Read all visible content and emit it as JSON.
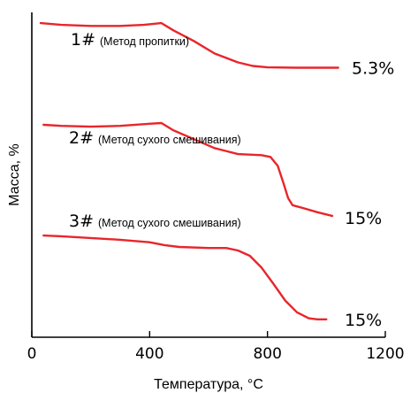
{
  "chart_data": {
    "type": "line",
    "xlabel": "Температура, °C",
    "ylabel": "Масса, %",
    "xlim": [
      0,
      1200
    ],
    "xticks": [
      "0",
      "400",
      "800",
      "1200"
    ],
    "xtick_values": [
      0,
      400,
      800,
      1200
    ],
    "series": [
      {
        "name": "1# (Метод пропитки)",
        "id": "1#",
        "method": "(Метод пропитки)",
        "end_label": "5.3%",
        "color": "#e8262b",
        "x": [
          30,
          100,
          200,
          300,
          380,
          440,
          480,
          550,
          620,
          700,
          750,
          800,
          900,
          1000,
          1040
        ],
        "y": [
          98.0,
          97.5,
          97.2,
          97.2,
          97.5,
          98.0,
          96.0,
          93.0,
          89.5,
          87.0,
          86.0,
          85.6,
          85.5,
          85.5,
          85.5
        ]
      },
      {
        "name": "2# (Метод сухого смешивания)",
        "id": "2#",
        "method": "(Метод сухого смешивания)",
        "end_label": "15%",
        "color": "#e8262b",
        "x": [
          40,
          100,
          200,
          300,
          400,
          440,
          480,
          550,
          620,
          700,
          780,
          810,
          835,
          855,
          870,
          885,
          920,
          970,
          1020
        ],
        "y": [
          69.5,
          69.2,
          69.0,
          69.2,
          69.8,
          70.0,
          68.0,
          65.5,
          63.0,
          61.3,
          61.0,
          60.5,
          58.0,
          53.0,
          49.0,
          47.0,
          46.2,
          45.0,
          44.0
        ]
      },
      {
        "name": "3# (Метод сухого смешивания)",
        "id": "3#",
        "method": "(Метод сухого смешивания)",
        "end_label": "15%",
        "color": "#e8262b",
        "x": [
          40,
          100,
          200,
          300,
          400,
          450,
          500,
          600,
          660,
          700,
          740,
          780,
          820,
          860,
          900,
          940,
          970,
          1000
        ],
        "y": [
          38.5,
          38.3,
          37.8,
          37.3,
          36.6,
          35.8,
          35.3,
          35.0,
          35.0,
          34.3,
          32.8,
          29.5,
          25.0,
          20.3,
          17.0,
          15.3,
          15.0,
          15.0
        ]
      }
    ]
  }
}
